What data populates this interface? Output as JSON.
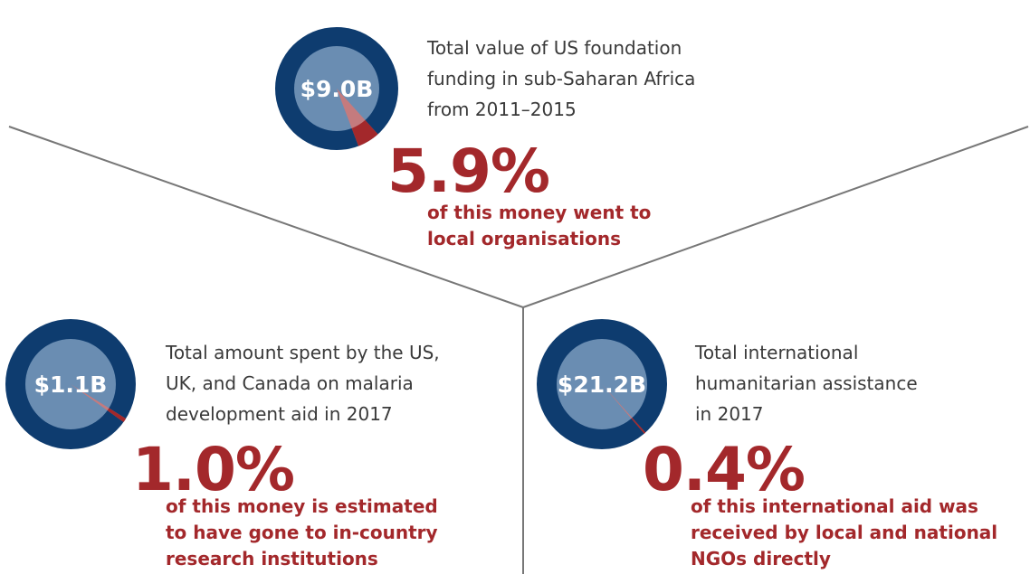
{
  "panels": [
    {
      "amount": "$9.0B",
      "description": [
        "Total value of US foundation",
        "funding in sub-Saharan Africa",
        "from 2011–2015"
      ],
      "share": {
        "value": 5.9,
        "label": "5.9%"
      },
      "note": [
        "of this money went to",
        "local organisations"
      ]
    },
    {
      "amount": "$1.1B",
      "description": [
        "Total amount spent by the US,",
        "UK, and Canada on malaria",
        "development aid in 2017"
      ],
      "share": {
        "value": 1.0,
        "label": "1.0%"
      },
      "note": [
        "of this money is estimated",
        "to have gone to in-country",
        "research institutions"
      ]
    },
    {
      "amount": "$21.2B",
      "description": [
        "Total international",
        "humanitarian assistance",
        "in 2017"
      ],
      "share": {
        "value": 0.4,
        "label": "0.4%"
      },
      "note": [
        "of this international aid was",
        "received by local and national",
        "NGOs directly"
      ]
    }
  ]
}
